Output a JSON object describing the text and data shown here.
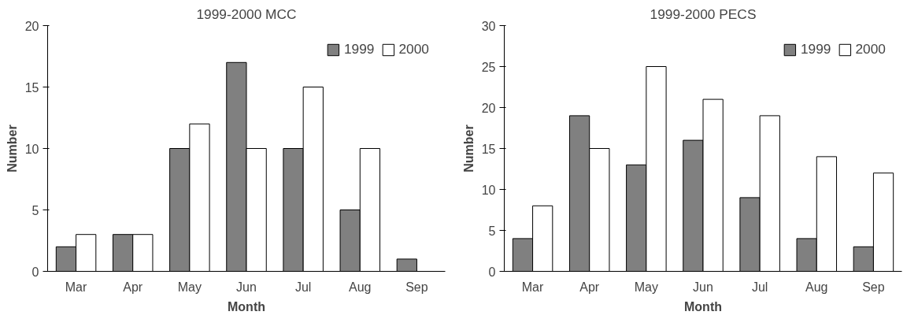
{
  "chart_data": [
    {
      "type": "bar",
      "title": "1999-2000 MCC",
      "xlabel": "Month",
      "ylabel": "Number",
      "categories": [
        "Mar",
        "Apr",
        "May",
        "Jun",
        "Jul",
        "Aug",
        "Sep"
      ],
      "ylim": [
        0,
        20
      ],
      "yticks": [
        0,
        5,
        10,
        15,
        20
      ],
      "grid": false,
      "legend": "top right",
      "series": [
        {
          "name": "1999",
          "color": "#808080",
          "values": [
            2,
            3,
            10,
            17,
            10,
            5,
            1
          ]
        },
        {
          "name": "2000",
          "color": "#ffffff",
          "values": [
            3,
            3,
            12,
            10,
            15,
            10,
            null
          ]
        }
      ]
    },
    {
      "type": "bar",
      "title": "1999-2000 PECS",
      "xlabel": "Month",
      "ylabel": "Number",
      "categories": [
        "Mar",
        "Apr",
        "May",
        "Jun",
        "Jul",
        "Aug",
        "Sep"
      ],
      "ylim": [
        0,
        30
      ],
      "yticks": [
        0,
        5,
        10,
        15,
        20,
        25,
        30
      ],
      "grid": false,
      "legend": "top right",
      "series": [
        {
          "name": "1999",
          "color": "#808080",
          "values": [
            4,
            19,
            13,
            16,
            9,
            4,
            3
          ]
        },
        {
          "name": "2000",
          "color": "#ffffff",
          "values": [
            8,
            15,
            25,
            21,
            19,
            14,
            12
          ]
        }
      ]
    }
  ]
}
